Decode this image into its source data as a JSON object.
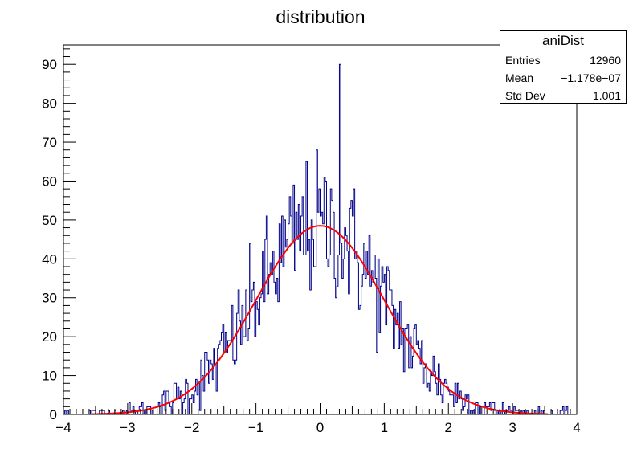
{
  "chart_data": {
    "type": "histogram",
    "title": "distribution",
    "xlabel": "",
    "ylabel": "",
    "xlim": [
      -4,
      4
    ],
    "ylim": [
      0,
      95
    ],
    "x_ticks": [
      "−4",
      "−3",
      "−2",
      "−1",
      "0",
      "1",
      "2",
      "3",
      "4"
    ],
    "y_ticks": [
      "0",
      "10",
      "20",
      "30",
      "40",
      "50",
      "60",
      "70",
      "80",
      "90"
    ],
    "grid": false,
    "histogram": {
      "name": "aniDist",
      "color": "#00008b",
      "bin_range": [
        -4,
        4
      ],
      "n_bins": 400,
      "shape": "gaussian counts with fluctuations",
      "peak_count": 90,
      "peak_x": 0.3
    },
    "fit": {
      "type": "gaussian",
      "color": "#ff0000",
      "amplitude": 48.5,
      "mean": 0.0,
      "sigma": 1.0
    },
    "stats_box": {
      "title": "aniDist",
      "rows": [
        {
          "label": "Entries",
          "value": "12960"
        },
        {
          "label": "Mean",
          "value": "−1.178e−07"
        },
        {
          "label": "Std Dev",
          "value": "1.001"
        }
      ]
    }
  }
}
